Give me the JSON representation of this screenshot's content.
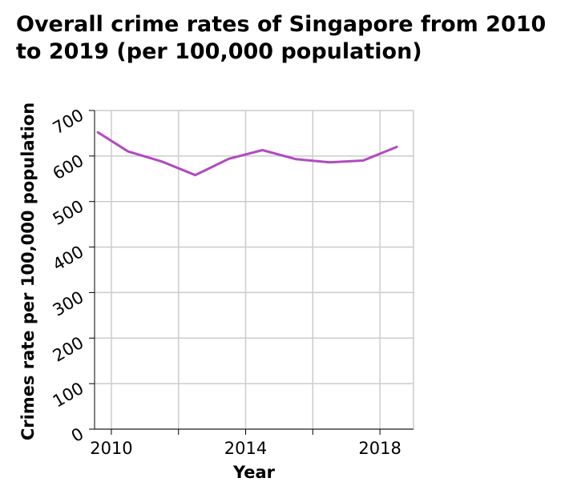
{
  "chart_data": {
    "type": "line",
    "title": "Overall crime rates of Singapore from 2010 to 2019 (per 100,000 population)",
    "xlabel": "Year",
    "ylabel": "Crimes rate per 100,000 population",
    "xlim": [
      2009.5,
      2019
    ],
    "ylim": [
      0,
      700
    ],
    "x_ticks": [
      2010,
      2014,
      2018
    ],
    "x_gridlines": [
      2010,
      2012,
      2014,
      2016,
      2018
    ],
    "y_ticks": [
      0,
      100,
      200,
      300,
      400,
      500,
      600,
      700
    ],
    "grid": true,
    "legend": "none",
    "line_color": "#b04ac0",
    "x": [
      2009.6,
      2010.5,
      2011.5,
      2012.5,
      2013.5,
      2014.5,
      2015.5,
      2016.5,
      2017.5,
      2018.5
    ],
    "values": [
      652,
      610,
      588,
      558,
      594,
      613,
      593,
      586,
      590,
      620
    ]
  }
}
